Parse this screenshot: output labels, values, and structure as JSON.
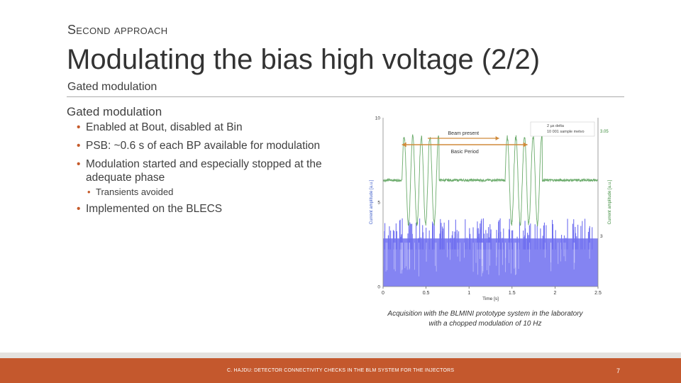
{
  "header": {
    "kicker": "Second approach",
    "title": "Modulating the bias high voltage (2/2)",
    "subtitle": "Gated modulation"
  },
  "content": {
    "heading": "Gated modulation",
    "bullets": [
      "Enabled at Bout, disabled at Bin",
      "PSB: ~0.6 s of each BP available for modulation",
      "Modulation started and especially stopped at the adequate phase",
      "Implemented on the BLECS"
    ],
    "sub_bullet": "Transients avoided",
    "bullet_marker": "•"
  },
  "figure": {
    "annotations": {
      "beam_present": "Beam present",
      "basic_period": "Basic Period",
      "legend_line1": "2 µs delta",
      "legend_line2": "10 001 sample metvo",
      "right_top_label": "3.05"
    },
    "chart_data": {
      "type": "line",
      "xlabel": "Time [s]",
      "ylabel_left": "Current amplitude [a.u.]",
      "ylabel_right": "Current amplitude [a.u.]",
      "x_ticks": [
        "0",
        "0.5",
        "1",
        "1.5",
        "2",
        "2.5"
      ],
      "y_ticks_left": [
        "0",
        "5",
        "10"
      ],
      "y_tick_right": "3",
      "xlim": [
        0,
        2.5
      ],
      "ylim": [
        0,
        10
      ],
      "beam_windows_s": [
        [
          0.22,
          0.65
        ],
        [
          1.42,
          1.85
        ]
      ],
      "series": [
        {
          "color": "#6bab6b"
        },
        {
          "color": "#6f6ff0"
        }
      ]
    }
  },
  "caption": {
    "line1": "Acquisition with the BLMINI prototype system in the laboratory",
    "line2": "with a chopped modulation of 10 Hz"
  },
  "footer": {
    "text": "C. HAJDU: DETECTOR CONNECTIVITY CHECKS IN THE BLM SYSTEM FOR THE INJECTORS",
    "page": "7"
  },
  "colors": {
    "accent": "#c4582d",
    "footer_band": "#e4e2df",
    "arrow": "#d08a3a"
  }
}
